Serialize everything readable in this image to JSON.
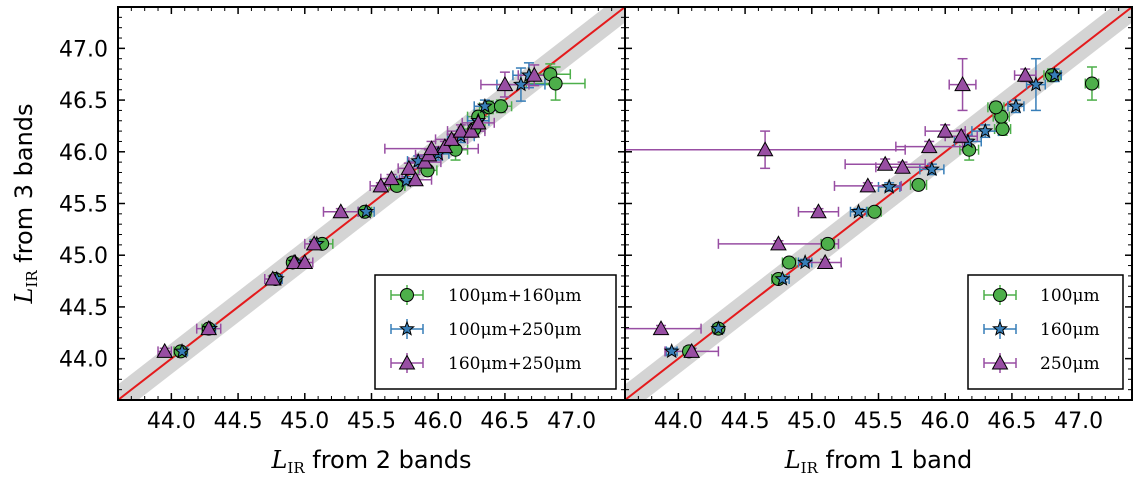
{
  "chart_data": [
    {
      "type": "scatter",
      "xlabel_symbol": "L",
      "xlabel_subscript": "IR",
      "xlabel_suffix": " from 2 bands",
      "ylabel_symbol": "L",
      "ylabel_subscript": "IR",
      "ylabel_suffix": " from 3 bands",
      "xlim": [
        43.6,
        47.4
      ],
      "ylim": [
        43.6,
        47.4
      ],
      "xticks": [
        "44.0",
        "44.5",
        "45.0",
        "45.5",
        "46.0",
        "46.5",
        "47.0"
      ],
      "yticks": [
        "44.0",
        "44.5",
        "45.0",
        "45.5",
        "46.0",
        "46.5",
        "47.0"
      ],
      "one_to_one_line": true,
      "band_halfwidth": 0.15,
      "legend_position": "bottom-right",
      "series": [
        {
          "name": "100μm+160μm",
          "marker": "circle",
          "color": "#4daf4a",
          "points": [
            {
              "x": 44.07,
              "y": 44.07,
              "xerr": 0.05,
              "yerr": 0.03
            },
            {
              "x": 44.28,
              "y": 44.29,
              "xerr": 0.05,
              "yerr": 0.03
            },
            {
              "x": 44.78,
              "y": 44.77,
              "xerr": 0.04,
              "yerr": 0.03
            },
            {
              "x": 44.91,
              "y": 44.93,
              "xerr": 0.04,
              "yerr": 0.03
            },
            {
              "x": 45.13,
              "y": 45.11,
              "xerr": 0.08,
              "yerr": 0.03
            },
            {
              "x": 45.45,
              "y": 45.42,
              "xerr": 0.05,
              "yerr": 0.03
            },
            {
              "x": 45.69,
              "y": 45.67,
              "xerr": 0.06,
              "yerr": 0.03
            },
            {
              "x": 45.92,
              "y": 45.82,
              "xerr": 0.07,
              "yerr": 0.04
            },
            {
              "x": 46.13,
              "y": 46.02,
              "xerr": 0.09,
              "yerr": 0.1
            },
            {
              "x": 46.27,
              "y": 46.22,
              "xerr": 0.08,
              "yerr": 0.06
            },
            {
              "x": 46.3,
              "y": 46.34,
              "xerr": 0.08,
              "yerr": 0.06
            },
            {
              "x": 46.38,
              "y": 46.43,
              "xerr": 0.07,
              "yerr": 0.06
            },
            {
              "x": 46.47,
              "y": 46.44,
              "xerr": 0.08,
              "yerr": 0.06
            },
            {
              "x": 46.84,
              "y": 46.75,
              "xerr": 0.15,
              "yerr": 0.1
            },
            {
              "x": 46.88,
              "y": 46.66,
              "xerr": 0.22,
              "yerr": 0.16
            }
          ]
        },
        {
          "name": "100μm+250μm",
          "marker": "star",
          "color": "#377eb8",
          "points": [
            {
              "x": 44.08,
              "y": 44.07,
              "xerr": 0.04,
              "yerr": 0.03
            },
            {
              "x": 44.29,
              "y": 44.29,
              "xerr": 0.04,
              "yerr": 0.03
            },
            {
              "x": 44.79,
              "y": 44.77,
              "xerr": 0.04,
              "yerr": 0.03
            },
            {
              "x": 44.93,
              "y": 44.93,
              "xerr": 0.05,
              "yerr": 0.03
            },
            {
              "x": 45.09,
              "y": 45.11,
              "xerr": 0.05,
              "yerr": 0.03
            },
            {
              "x": 45.46,
              "y": 45.42,
              "xerr": 0.06,
              "yerr": 0.03
            },
            {
              "x": 45.76,
              "y": 45.72,
              "xerr": 0.07,
              "yerr": 0.04
            },
            {
              "x": 45.85,
              "y": 45.91,
              "xerr": 0.08,
              "yerr": 0.05
            },
            {
              "x": 46.0,
              "y": 45.98,
              "xerr": 0.08,
              "yerr": 0.06
            },
            {
              "x": 46.17,
              "y": 46.15,
              "xerr": 0.1,
              "yerr": 0.06
            },
            {
              "x": 46.3,
              "y": 46.3,
              "xerr": 0.08,
              "yerr": 0.06
            },
            {
              "x": 46.35,
              "y": 46.44,
              "xerr": 0.08,
              "yerr": 0.06
            },
            {
              "x": 46.62,
              "y": 46.65,
              "xerr": 0.18,
              "yerr": 0.16
            },
            {
              "x": 46.68,
              "y": 46.74,
              "xerr": 0.12,
              "yerr": 0.12
            }
          ]
        },
        {
          "name": "160μm+250μm",
          "marker": "triangle",
          "color": "#984ea3",
          "points": [
            {
              "x": 43.95,
              "y": 44.07,
              "xerr": 0.05,
              "yerr": 0.03
            },
            {
              "x": 44.28,
              "y": 44.29,
              "xerr": 0.09,
              "yerr": 0.03
            },
            {
              "x": 44.76,
              "y": 44.77,
              "xerr": 0.06,
              "yerr": 0.03
            },
            {
              "x": 44.92,
              "y": 44.93,
              "xerr": 0.05,
              "yerr": 0.03
            },
            {
              "x": 45.0,
              "y": 44.93,
              "xerr": 0.06,
              "yerr": 0.03
            },
            {
              "x": 45.07,
              "y": 45.11,
              "xerr": 0.07,
              "yerr": 0.03
            },
            {
              "x": 45.27,
              "y": 45.42,
              "xerr": 0.13,
              "yerr": 0.03
            },
            {
              "x": 45.57,
              "y": 45.67,
              "xerr": 0.08,
              "yerr": 0.03
            },
            {
              "x": 45.65,
              "y": 45.74,
              "xerr": 0.08,
              "yerr": 0.04
            },
            {
              "x": 45.78,
              "y": 45.84,
              "xerr": 0.08,
              "yerr": 0.05
            },
            {
              "x": 45.83,
              "y": 45.73,
              "xerr": 0.12,
              "yerr": 0.05
            },
            {
              "x": 45.9,
              "y": 45.9,
              "xerr": 0.12,
              "yerr": 0.05
            },
            {
              "x": 45.93,
              "y": 45.97,
              "xerr": 0.1,
              "yerr": 0.05
            },
            {
              "x": 45.95,
              "y": 46.03,
              "xerr": 0.35,
              "yerr": 0.07
            },
            {
              "x": 46.05,
              "y": 46.05,
              "xerr": 0.1,
              "yerr": 0.05
            },
            {
              "x": 46.1,
              "y": 46.12,
              "xerr": 0.12,
              "yerr": 0.05
            },
            {
              "x": 46.17,
              "y": 46.2,
              "xerr": 0.1,
              "yerr": 0.06
            },
            {
              "x": 46.25,
              "y": 46.2,
              "xerr": 0.1,
              "yerr": 0.06
            },
            {
              "x": 46.3,
              "y": 46.28,
              "xerr": 0.12,
              "yerr": 0.06
            },
            {
              "x": 46.5,
              "y": 46.65,
              "xerr": 0.18,
              "yerr": 0.12
            },
            {
              "x": 46.72,
              "y": 46.74,
              "xerr": 0.12,
              "yerr": 0.1
            }
          ]
        }
      ]
    },
    {
      "type": "scatter",
      "xlabel_symbol": "L",
      "xlabel_subscript": "IR",
      "xlabel_suffix": " from 1 band",
      "xlim": [
        43.6,
        47.4
      ],
      "ylim": [
        43.6,
        47.4
      ],
      "xticks": [
        "44.0",
        "44.5",
        "45.0",
        "45.5",
        "46.0",
        "46.5",
        "47.0"
      ],
      "one_to_one_line": true,
      "band_halfwidth": 0.15,
      "legend_position": "bottom-right",
      "series": [
        {
          "name": "100μm",
          "marker": "circle",
          "color": "#4daf4a",
          "points": [
            {
              "x": 44.08,
              "y": 44.07,
              "xerr": 0.04,
              "yerr": 0.03
            },
            {
              "x": 44.3,
              "y": 44.29,
              "xerr": 0.04,
              "yerr": 0.03
            },
            {
              "x": 44.75,
              "y": 44.77,
              "xerr": 0.05,
              "yerr": 0.03
            },
            {
              "x": 44.83,
              "y": 44.93,
              "xerr": 0.05,
              "yerr": 0.03
            },
            {
              "x": 45.12,
              "y": 45.11,
              "xerr": 0.05,
              "yerr": 0.03
            },
            {
              "x": 45.47,
              "y": 45.42,
              "xerr": 0.05,
              "yerr": 0.03
            },
            {
              "x": 45.8,
              "y": 45.68,
              "xerr": 0.06,
              "yerr": 0.04
            },
            {
              "x": 46.18,
              "y": 46.02,
              "xerr": 0.07,
              "yerr": 0.1
            },
            {
              "x": 46.43,
              "y": 46.22,
              "xerr": 0.06,
              "yerr": 0.06
            },
            {
              "x": 46.42,
              "y": 46.34,
              "xerr": 0.06,
              "yerr": 0.06
            },
            {
              "x": 46.38,
              "y": 46.43,
              "xerr": 0.06,
              "yerr": 0.05
            },
            {
              "x": 46.8,
              "y": 46.74,
              "xerr": 0.06,
              "yerr": 0.06
            },
            {
              "x": 47.1,
              "y": 46.66,
              "xerr": 0.05,
              "yerr": 0.16
            }
          ]
        },
        {
          "name": "160μm",
          "marker": "star",
          "color": "#377eb8",
          "points": [
            {
              "x": 43.95,
              "y": 44.07,
              "xerr": 0.04,
              "yerr": 0.03
            },
            {
              "x": 44.3,
              "y": 44.29,
              "xerr": 0.04,
              "yerr": 0.03
            },
            {
              "x": 44.78,
              "y": 44.77,
              "xerr": 0.05,
              "yerr": 0.03
            },
            {
              "x": 44.95,
              "y": 44.93,
              "xerr": 0.05,
              "yerr": 0.03
            },
            {
              "x": 45.35,
              "y": 45.42,
              "xerr": 0.06,
              "yerr": 0.03
            },
            {
              "x": 45.58,
              "y": 45.66,
              "xerr": 0.08,
              "yerr": 0.04
            },
            {
              "x": 45.9,
              "y": 45.83,
              "xerr": 0.09,
              "yerr": 0.05
            },
            {
              "x": 46.17,
              "y": 46.1,
              "xerr": 0.1,
              "yerr": 0.06
            },
            {
              "x": 46.3,
              "y": 46.2,
              "xerr": 0.1,
              "yerr": 0.06
            },
            {
              "x": 46.53,
              "y": 46.44,
              "xerr": 0.06,
              "yerr": 0.06
            },
            {
              "x": 46.68,
              "y": 46.65,
              "xerr": 0.07,
              "yerr": 0.25
            },
            {
              "x": 46.82,
              "y": 46.74,
              "xerr": 0.05,
              "yerr": 0.06
            }
          ]
        },
        {
          "name": "250μm",
          "marker": "triangle",
          "color": "#984ea3",
          "points": [
            {
              "x": 43.87,
              "y": 44.29,
              "xerr": 0.3,
              "yerr": 0.03
            },
            {
              "x": 44.1,
              "y": 44.07,
              "xerr": 0.2,
              "yerr": 0.03
            },
            {
              "x": 44.65,
              "y": 46.02,
              "xerr": 1.05,
              "yerr": 0.18
            },
            {
              "x": 44.75,
              "y": 45.11,
              "xerr": 0.45,
              "yerr": 0.03
            },
            {
              "x": 45.05,
              "y": 45.42,
              "xerr": 0.15,
              "yerr": 0.03
            },
            {
              "x": 45.1,
              "y": 44.93,
              "xerr": 0.12,
              "yerr": 0.03
            },
            {
              "x": 45.42,
              "y": 45.67,
              "xerr": 0.25,
              "yerr": 0.03
            },
            {
              "x": 45.55,
              "y": 45.88,
              "xerr": 0.3,
              "yerr": 0.05
            },
            {
              "x": 45.68,
              "y": 45.85,
              "xerr": 0.2,
              "yerr": 0.05
            },
            {
              "x": 45.88,
              "y": 46.05,
              "xerr": 0.25,
              "yerr": 0.05
            },
            {
              "x": 46.0,
              "y": 46.2,
              "xerr": 0.15,
              "yerr": 0.06
            },
            {
              "x": 46.12,
              "y": 46.15,
              "xerr": 0.12,
              "yerr": 0.06
            },
            {
              "x": 46.13,
              "y": 46.65,
              "xerr": 0.1,
              "yerr": 0.25
            },
            {
              "x": 46.6,
              "y": 46.74,
              "xerr": 0.08,
              "yerr": 0.06
            }
          ]
        }
      ]
    }
  ]
}
